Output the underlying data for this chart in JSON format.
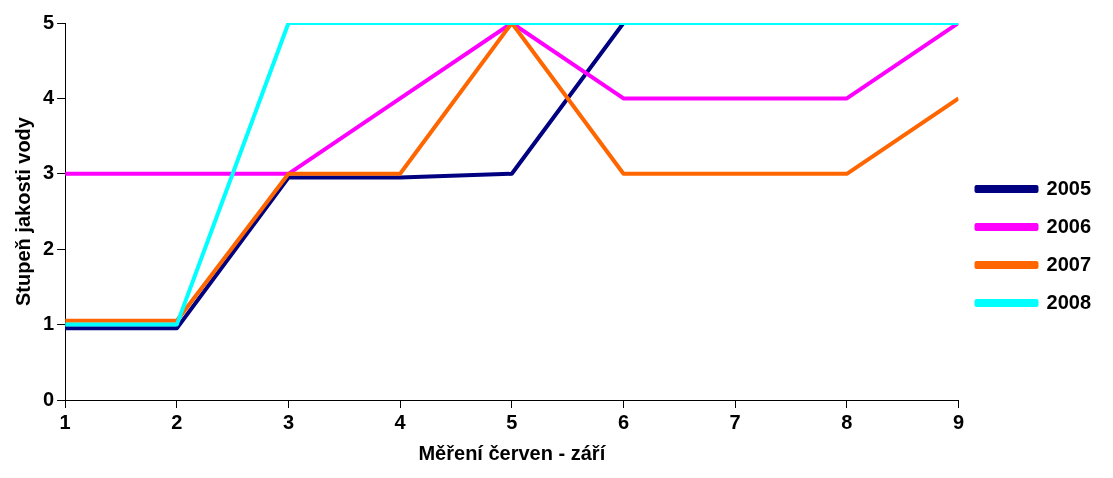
{
  "chart_data": {
    "type": "line",
    "xlabel": "Měření červen - září",
    "ylabel": "Stupeň jakosti vody",
    "x": [
      1,
      2,
      3,
      4,
      5,
      6,
      7,
      8,
      9
    ],
    "xlim": [
      1,
      9
    ],
    "xticks": [
      1,
      2,
      3,
      4,
      5,
      6,
      7,
      8,
      9
    ],
    "ylim": [
      0,
      5
    ],
    "yticks": [
      0,
      1,
      2,
      3,
      4,
      5
    ],
    "grid": false,
    "legend": "right",
    "marker": "none",
    "line_style": "solid",
    "series": [
      {
        "name": "2005",
        "color": "#000080",
        "values": [
          0.95,
          0.95,
          2.95,
          2.95,
          3,
          5,
          null,
          null,
          null
        ]
      },
      {
        "name": "2006",
        "color": "#ff00ff",
        "values": [
          3,
          3,
          3,
          4,
          5,
          4,
          4,
          4,
          5
        ]
      },
      {
        "name": "2007",
        "color": "#ff6600",
        "values": [
          1.05,
          1.05,
          3,
          3,
          5,
          3,
          3,
          3,
          4
        ]
      },
      {
        "name": "2008",
        "color": "#00ffff",
        "values": [
          1,
          1,
          5,
          5,
          5,
          5,
          5,
          5,
          5
        ]
      }
    ]
  }
}
